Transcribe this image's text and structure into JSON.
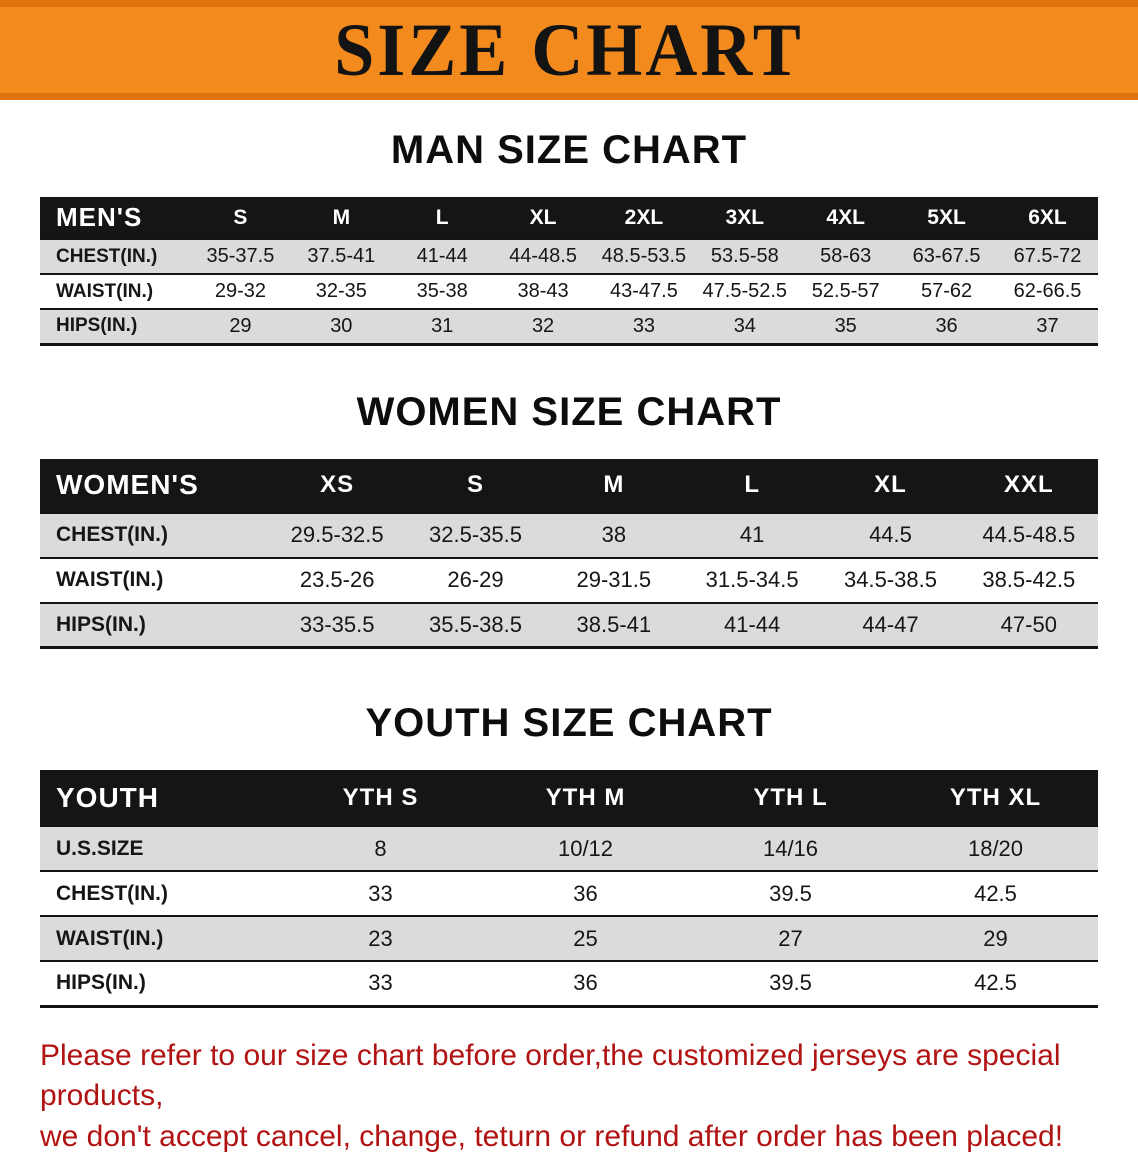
{
  "banner": {
    "title": "SIZE CHART",
    "bg_color": "#F28A1E",
    "text_color": "#131313"
  },
  "sections": {
    "men": {
      "heading": "MAN SIZE CHART"
    },
    "women": {
      "heading": "WOMEN SIZE CHART"
    },
    "youth": {
      "heading": "YOUTH SIZE CHART"
    }
  },
  "chart_data": [
    {
      "type": "table",
      "title": "MAN SIZE CHART",
      "header": [
        "MEN'S",
        "S",
        "M",
        "L",
        "XL",
        "2XL",
        "3XL",
        "4XL",
        "5XL",
        "6XL"
      ],
      "rows": [
        [
          "CHEST(IN.)",
          "35-37.5",
          "37.5-41",
          "41-44",
          "44-48.5",
          "48.5-53.5",
          "53.5-58",
          "58-63",
          "63-67.5",
          "67.5-72"
        ],
        [
          "WAIST(IN.)",
          "29-32",
          "32-35",
          "35-38",
          "38-43",
          "43-47.5",
          "47.5-52.5",
          "52.5-57",
          "57-62",
          "62-66.5"
        ],
        [
          "HIPS(IN.)",
          "29",
          "30",
          "31",
          "32",
          "33",
          "34",
          "35",
          "36",
          "37"
        ]
      ]
    },
    {
      "type": "table",
      "title": "WOMEN SIZE CHART",
      "header": [
        "WOMEN'S",
        "XS",
        "S",
        "M",
        "L",
        "XL",
        "XXL"
      ],
      "rows": [
        [
          "CHEST(IN.)",
          "29.5-32.5",
          "32.5-35.5",
          "38",
          "41",
          "44.5",
          "44.5-48.5"
        ],
        [
          "WAIST(IN.)",
          "23.5-26",
          "26-29",
          "29-31.5",
          "31.5-34.5",
          "34.5-38.5",
          "38.5-42.5"
        ],
        [
          "HIPS(IN.)",
          "33-35.5",
          "35.5-38.5",
          "38.5-41",
          "41-44",
          "44-47",
          "47-50"
        ]
      ]
    },
    {
      "type": "table",
      "title": "YOUTH SIZE CHART",
      "header": [
        "YOUTH",
        "YTH S",
        "YTH M",
        "YTH L",
        "YTH XL"
      ],
      "rows": [
        [
          "U.S.SIZE",
          "8",
          "10/12",
          "14/16",
          "18/20"
        ],
        [
          "CHEST(IN.)",
          "33",
          "36",
          "39.5",
          "42.5"
        ],
        [
          "WAIST(IN.)",
          "23",
          "25",
          "27",
          "29"
        ],
        [
          "HIPS(IN.)",
          "33",
          "36",
          "39.5",
          "42.5"
        ]
      ]
    }
  ],
  "disclaimer": {
    "line1": "Please refer to our size chart before order,the customized jerseys are special products,",
    "line2": "we don't accept cancel, change, teturn or refund after order has been placed!",
    "color": "#B11212"
  }
}
